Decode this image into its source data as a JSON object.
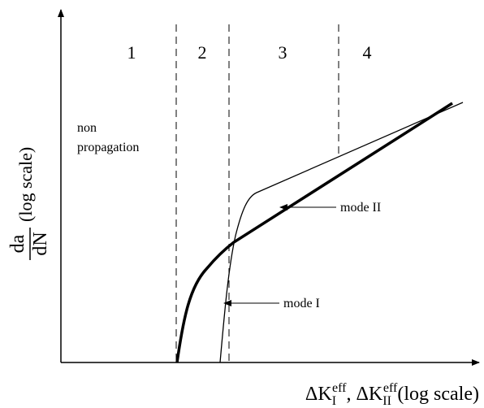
{
  "regions": [
    "1",
    "2",
    "3",
    "4"
  ],
  "region_note": [
    "non",
    "propagation"
  ],
  "annotations": {
    "mode_ii": "mode II",
    "mode_i": "mode I"
  },
  "y_label": {
    "numerator": "da",
    "denominator": "dN",
    "suffix": "(log scale)"
  },
  "x_label": {
    "k1": "ΔK",
    "k1_sub": "I",
    "k1_sup": "eff",
    "sep": ", ΔK",
    "k2_sub": "II",
    "k2_sup": "eff",
    "suffix": "(log scale)"
  }
}
